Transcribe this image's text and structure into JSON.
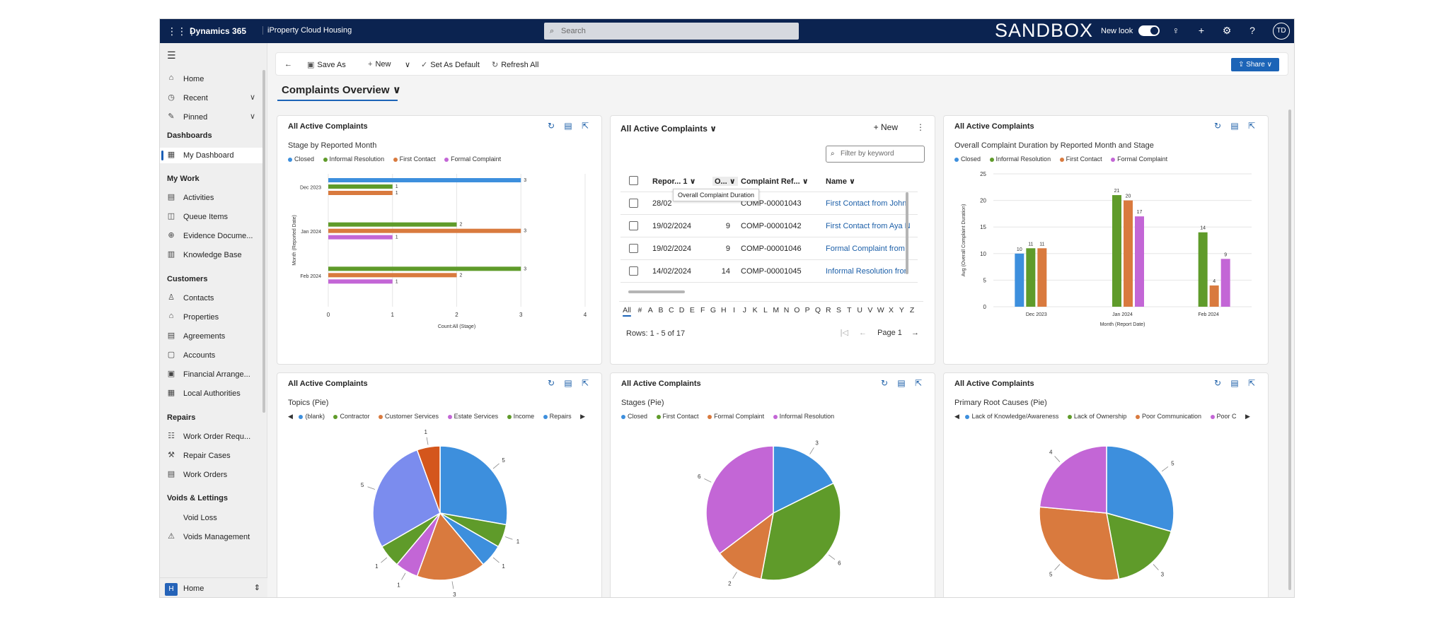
{
  "topbar": {
    "brand": "Dynamics 365",
    "app_name": "iProperty Cloud Housing",
    "search_placeholder": "Search",
    "environment": "SANDBOX",
    "new_look_label": "New look",
    "avatar_initials": "TD"
  },
  "sidebar": {
    "items_top": [
      {
        "label": "Home",
        "icon": "home-icon"
      },
      {
        "label": "Recent",
        "icon": "clock-icon"
      },
      {
        "label": "Pinned",
        "icon": "pin-icon"
      }
    ],
    "groups": {
      "dashboards": "Dashboards",
      "my_work": "My Work",
      "customers": "Customers",
      "repairs": "Repairs",
      "voids": "Voids & Lettings"
    },
    "dashboards_items": [
      {
        "label": "My Dashboard"
      }
    ],
    "my_work_items": [
      {
        "label": "Activities"
      },
      {
        "label": "Queue Items"
      },
      {
        "label": "Evidence Docume..."
      },
      {
        "label": "Knowledge Base"
      }
    ],
    "customers_items": [
      {
        "label": "Contacts"
      },
      {
        "label": "Properties"
      },
      {
        "label": "Agreements"
      },
      {
        "label": "Accounts"
      },
      {
        "label": "Financial Arrange..."
      },
      {
        "label": "Local Authorities"
      }
    ],
    "repairs_items": [
      {
        "label": "Work Order Requ..."
      },
      {
        "label": "Repair Cases"
      },
      {
        "label": "Work Orders"
      }
    ],
    "voids_items": [
      {
        "label": "Void Loss"
      },
      {
        "label": "Voids Management"
      }
    ],
    "area_badge": "H",
    "area_label": "Home"
  },
  "commandbar": {
    "save_as": "Save As",
    "new": "New",
    "set_default": "Set As Default",
    "refresh_all": "Refresh All",
    "share": "Share"
  },
  "page": {
    "title": "Complaints Overview"
  },
  "colors": {
    "closed": "#3d8fdd",
    "informal": "#5f9b2a",
    "first_contact": "#d97a3e",
    "formal": "#c366d6",
    "accent": "#1c64b7",
    "topbar": "#0b2350"
  },
  "cards": {
    "stage_bar": {
      "title": "All Active Complaints",
      "subtitle": "Stage by Reported Month",
      "legend": [
        "Closed",
        "Informal Resolution",
        "First Contact",
        "Formal Complaint"
      ]
    },
    "grid": {
      "title": "All Active Complaints",
      "new_label": "New",
      "filter_placeholder": "Filter by keyword",
      "columns": [
        "Repor...",
        "O...",
        "Complaint Ref...",
        "Name"
      ],
      "sort_indicator": "1",
      "tooltip": "Overall Complaint Duration",
      "rows": [
        {
          "date": "28/02",
          "duration": "",
          "ref": "COMP-00001043",
          "name": "First Contact from John"
        },
        {
          "date": "19/02/2024",
          "duration": "9",
          "ref": "COMP-00001042",
          "name": "First Contact from Aya N"
        },
        {
          "date": "19/02/2024",
          "duration": "9",
          "ref": "COMP-00001046",
          "name": "Formal Complaint from"
        },
        {
          "date": "14/02/2024",
          "duration": "14",
          "ref": "COMP-00001045",
          "name": "Informal Resolution fror"
        }
      ],
      "alphabet": [
        "All",
        "#",
        "A",
        "B",
        "C",
        "D",
        "E",
        "F",
        "G",
        "H",
        "I",
        "J",
        "K",
        "L",
        "M",
        "N",
        "O",
        "P",
        "Q",
        "R",
        "S",
        "T",
        "U",
        "V",
        "W",
        "X",
        "Y",
        "Z"
      ],
      "rows_info": "Rows: 1 - 5 of 17",
      "page_label": "Page 1"
    },
    "duration_bar": {
      "title": "All Active Complaints",
      "subtitle": "Overall Complaint Duration by Reported Month and Stage",
      "legend": [
        "Closed",
        "Informal Resolution",
        "First Contact",
        "Formal Complaint"
      ]
    },
    "topics_pie": {
      "title": "All Active Complaints",
      "subtitle": "Topics (Pie)",
      "legend": [
        "(blank)",
        "Contractor",
        "Customer Services",
        "Estate Services",
        "Income",
        "Repairs"
      ]
    },
    "stages_pie": {
      "title": "All Active Complaints",
      "subtitle": "Stages (Pie)",
      "legend": [
        "Closed",
        "First Contact",
        "Formal Complaint",
        "Informal Resolution"
      ]
    },
    "roots_pie": {
      "title": "All Active Complaints",
      "subtitle": "Primary Root Causes (Pie)",
      "legend": [
        "Lack of Knowledge/Awareness",
        "Lack of Ownership",
        "Poor Communication",
        "Poor C"
      ]
    }
  },
  "chart_data": [
    {
      "type": "bar",
      "orientation": "horizontal",
      "title": "Stage by Reported Month",
      "categories": [
        "Dec 2023",
        "Jan 2024",
        "Feb 2024"
      ],
      "series": [
        {
          "name": "Closed",
          "values": [
            3,
            0,
            0
          ]
        },
        {
          "name": "Informal Resolution",
          "values": [
            1,
            2,
            3
          ]
        },
        {
          "name": "First Contact",
          "values": [
            1,
            3,
            2
          ]
        },
        {
          "name": "Formal Complaint",
          "values": [
            0,
            1,
            1
          ]
        }
      ],
      "xlabel": "Count:All (Stage)",
      "ylabel": "Month (Reported Date)",
      "xlim": [
        0,
        4
      ],
      "xticks": [
        "0",
        "1",
        "2",
        "3",
        "4"
      ]
    },
    {
      "type": "bar",
      "title": "Overall Complaint Duration by Reported Month and Stage",
      "categories": [
        "Dec 2023",
        "Jan 2024",
        "Feb 2024"
      ],
      "series": [
        {
          "name": "Closed",
          "values": [
            10,
            null,
            null
          ]
        },
        {
          "name": "Informal Resolution",
          "values": [
            11,
            21,
            14
          ]
        },
        {
          "name": "First Contact",
          "values": [
            11,
            20,
            4
          ]
        },
        {
          "name": "Formal Complaint",
          "values": [
            null,
            17,
            9
          ]
        }
      ],
      "xlabel": "Month (Report Date)",
      "ylabel": "Avg (Overall Complaint Duration)",
      "ylim": [
        0,
        25
      ],
      "yticks": [
        "0",
        "5",
        "10",
        "15",
        "20",
        "25"
      ]
    },
    {
      "type": "pie",
      "title": "Topics (Pie)",
      "labels": [
        "Repairs",
        "Contractor",
        "(blank)",
        "Customer Services",
        "Estate Services",
        "Contractor",
        "Income",
        "(blank)"
      ],
      "values": [
        5,
        1,
        1,
        3,
        1,
        1,
        5,
        1
      ],
      "colors": [
        "#3d8fdd",
        "#5f9b2a",
        "#3d8fdd",
        "#d97a3e",
        "#c366d6",
        "#5f9b2a",
        "#7b8cee",
        "#d4561c"
      ]
    },
    {
      "type": "pie",
      "title": "Stages (Pie)",
      "labels": [
        "Closed",
        "First Contact",
        "Formal Complaint",
        "Informal Resolution"
      ],
      "values": [
        3,
        6,
        2,
        6
      ],
      "colors": [
        "#3d8fdd",
        "#5f9b2a",
        "#d97a3e",
        "#c366d6"
      ]
    },
    {
      "type": "pie",
      "title": "Primary Root Causes (Pie)",
      "labels": [
        "Lack of Knowledge/Awareness",
        "Lack of Ownership",
        "Poor Communication",
        "Poor C"
      ],
      "values": [
        5,
        3,
        5,
        4
      ],
      "colors": [
        "#3d8fdd",
        "#5f9b2a",
        "#d97a3e",
        "#c366d6"
      ]
    }
  ]
}
